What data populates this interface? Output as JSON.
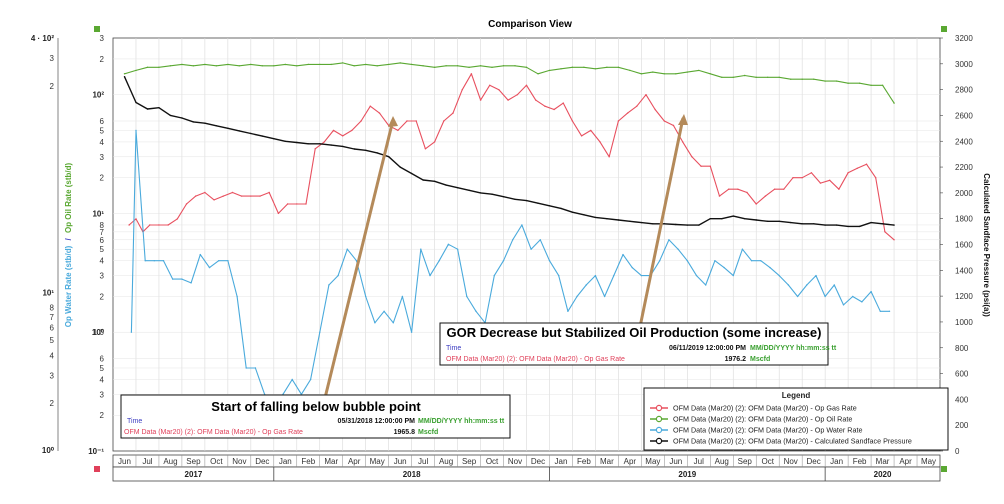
{
  "window": {
    "title": "Comparison View"
  },
  "chart_data": {
    "type": "line",
    "title": "Comparison View",
    "ylabel_left_water": "Op Water Rate (stb/d)",
    "ylabel_left_oil": "Op Oil Rate (stb/d)",
    "ylabel_left_sep": "/",
    "ylabel_right": "Calculated Sandface Pressure (psi(a))",
    "y_log_ticks": {
      "decade_labels": [
        "10²",
        "10¹",
        "10⁰",
        "10⁻¹"
      ],
      "minor_labels": [
        "3",
        "2",
        "6",
        "5",
        "4",
        "3",
        "2",
        "8",
        "7",
        "6",
        "5",
        "4",
        "3",
        "2",
        "1.0",
        "6",
        "5",
        "4",
        "3",
        "2"
      ]
    },
    "outer_axis_labels": [
      "4 · 10²",
      "3",
      "2",
      "10¹",
      "8",
      "7",
      "6",
      "5",
      "4",
      "3",
      "2",
      "10⁰"
    ],
    "y_right": {
      "min": 0,
      "max": 3200,
      "step": 200,
      "ticks": [
        "0",
        "200",
        "400",
        "600",
        "800",
        "1000",
        "1200",
        "1400",
        "1600",
        "1800",
        "2000",
        "2200",
        "2400",
        "2600",
        "2800",
        "3000",
        "3200"
      ]
    },
    "x_months": [
      "Jun",
      "Jul",
      "Aug",
      "Sep",
      "Oct",
      "Nov",
      "Dec",
      "Jan",
      "Feb",
      "Mar",
      "Apr",
      "May",
      "Jun",
      "Jul",
      "Aug",
      "Sep",
      "Oct",
      "Nov",
      "Dec",
      "Jan",
      "Feb",
      "Mar",
      "Apr",
      "May",
      "Jun",
      "Jul",
      "Aug",
      "Sep",
      "Oct",
      "Nov",
      "Dec",
      "Jan",
      "Feb",
      "Mar",
      "Apr",
      "May"
    ],
    "x_years": [
      "2017",
      "2018",
      "2019",
      "2020"
    ],
    "series": [
      {
        "name": "OFM Data (Mar20) (2): OFM Data (Mar20) - Op Gas Rate",
        "color": "#e8505f",
        "axis": "log",
        "x": [
          0.7,
          1.0,
          1.3,
          1.6,
          2.0,
          2.4,
          2.8,
          3.2,
          3.6,
          4.0,
          4.4,
          4.8,
          5.2,
          5.6,
          6.0,
          6.4,
          6.8,
          7.2,
          7.6,
          8.0,
          8.4,
          8.8,
          9.2,
          9.6,
          10.0,
          10.4,
          10.8,
          11.2,
          11.6,
          12.0,
          12.4,
          12.8,
          13.2,
          13.6,
          14.0,
          14.4,
          14.8,
          15.2,
          15.6,
          16.0,
          16.4,
          16.8,
          17.2,
          17.6,
          18.0,
          18.4,
          18.8,
          19.2,
          19.6,
          20.0,
          20.4,
          20.8,
          21.2,
          21.6,
          22.0,
          22.4,
          22.8,
          23.2,
          23.6,
          24.0,
          24.4,
          24.8,
          25.2,
          25.6,
          26.0,
          26.4,
          26.8,
          27.2,
          27.6,
          28.0,
          28.4,
          28.8,
          29.2,
          29.6,
          30.0,
          30.4,
          30.8,
          31.2,
          31.6,
          32.0,
          32.4,
          32.8,
          33.2,
          33.6,
          34.0
        ],
        "y": [
          8,
          9,
          7,
          8,
          8,
          8,
          9,
          12,
          14,
          15,
          13,
          14,
          15,
          14,
          14,
          14,
          15,
          10,
          12,
          12,
          12,
          35,
          40,
          50,
          45,
          50,
          60,
          80,
          70,
          55,
          50,
          60,
          60,
          35,
          40,
          60,
          70,
          110,
          150,
          90,
          120,
          110,
          90,
          100,
          120,
          90,
          80,
          75,
          85,
          60,
          45,
          50,
          40,
          30,
          60,
          70,
          80,
          100,
          75,
          60,
          55,
          40,
          30,
          25,
          25,
          14,
          16,
          16,
          15,
          12,
          14,
          16,
          16,
          20,
          20,
          22,
          18,
          19,
          16,
          22,
          24,
          26,
          20,
          7,
          6
        ]
      },
      {
        "name": "OFM Data (Mar20) (2): OFM Data (Mar20) - Op Oil Rate",
        "color": "#5aa832",
        "axis": "log",
        "x": [
          0.5,
          1.0,
          1.5,
          2.0,
          2.5,
          3.0,
          3.5,
          4.0,
          4.5,
          5.0,
          5.5,
          6.0,
          6.5,
          7.0,
          7.5,
          8.0,
          8.5,
          9.0,
          9.5,
          10.0,
          10.5,
          11.0,
          11.5,
          12.0,
          12.5,
          13.0,
          13.5,
          14.0,
          14.5,
          15.0,
          15.5,
          16.0,
          16.5,
          17.0,
          17.5,
          18.0,
          18.5,
          19.0,
          19.5,
          20.0,
          20.5,
          21.0,
          21.5,
          22.0,
          22.5,
          23.0,
          23.5,
          24.0,
          24.5,
          25.0,
          25.5,
          26.0,
          26.5,
          27.0,
          27.5,
          28.0,
          28.5,
          29.0,
          29.5,
          30.0,
          30.5,
          31.0,
          31.5,
          32.0,
          32.5,
          33.0,
          33.5,
          34.0
        ],
        "y": [
          150,
          160,
          170,
          170,
          175,
          180,
          175,
          180,
          175,
          180,
          175,
          180,
          175,
          175,
          180,
          175,
          180,
          180,
          180,
          185,
          175,
          180,
          175,
          180,
          185,
          180,
          175,
          170,
          175,
          175,
          170,
          175,
          170,
          175,
          175,
          170,
          150,
          160,
          165,
          170,
          170,
          165,
          170,
          170,
          160,
          150,
          155,
          150,
          150,
          155,
          160,
          150,
          140,
          140,
          145,
          140,
          140,
          140,
          135,
          135,
          135,
          130,
          130,
          125,
          125,
          120,
          120,
          85
        ]
      },
      {
        "name": "OFM Data (Mar20) (2): OFM Data (Mar20) - Op Water Rate",
        "color": "#4aaadc",
        "axis": "log",
        "x": [
          0.8,
          1.0,
          1.4,
          1.8,
          2.2,
          2.6,
          3.0,
          3.4,
          3.8,
          4.2,
          4.6,
          5.0,
          5.4,
          5.8,
          6.2,
          6.6,
          7.0,
          7.4,
          7.8,
          8.2,
          8.6,
          9.0,
          9.4,
          9.8,
          10.2,
          10.6,
          11.0,
          11.4,
          11.8,
          12.2,
          12.6,
          13.0,
          13.4,
          13.8,
          14.2,
          14.6,
          15.0,
          15.4,
          15.8,
          16.2,
          16.6,
          17.0,
          17.4,
          17.8,
          18.2,
          18.6,
          19.0,
          19.4,
          19.8,
          20.2,
          20.6,
          21.0,
          21.4,
          21.8,
          22.2,
          22.6,
          23.0,
          23.4,
          23.8,
          24.2,
          24.6,
          25.0,
          25.4,
          25.8,
          26.2,
          26.6,
          27.0,
          27.4,
          27.8,
          28.2,
          28.6,
          29.0,
          29.4,
          29.8,
          30.2,
          30.6,
          31.0,
          31.4,
          31.8,
          32.2,
          32.6,
          33.0,
          33.4,
          33.8
        ],
        "y": [
          1.0,
          50,
          4,
          4,
          4,
          2.8,
          2.8,
          2.6,
          4.5,
          3.5,
          4,
          4,
          2.0,
          0.5,
          0.5,
          0.3,
          0.15,
          0.3,
          0.4,
          0.3,
          0.4,
          1.0,
          2.5,
          3.0,
          5.0,
          4.0,
          2.0,
          1.2,
          1.5,
          1.2,
          2.0,
          1.0,
          5.0,
          3.0,
          4.0,
          5.5,
          5.0,
          2.0,
          1.5,
          1.2,
          3.0,
          4.0,
          6.0,
          8.0,
          5.0,
          6.0,
          4.0,
          3.0,
          1.5,
          2.0,
          2.5,
          3.0,
          2.0,
          3.0,
          4.5,
          3.5,
          3.0,
          3.0,
          4.0,
          6.0,
          5.0,
          4.0,
          3.0,
          2.5,
          4.0,
          3.5,
          3.0,
          5.0,
          4.0,
          4.0,
          3.5,
          3.0,
          2.5,
          2.0,
          2.5,
          3.0,
          2.0,
          2.5,
          1.7,
          2.0,
          1.8,
          2.2,
          1.5,
          1.5
        ]
      },
      {
        "name": "OFM Data (Mar20) (2): OFM Data (Mar20) - Calculated Sandface Pressure",
        "color": "#111111",
        "axis": "right",
        "x": [
          0.5,
          1.0,
          1.5,
          2.0,
          2.5,
          3.0,
          3.5,
          4.0,
          4.5,
          5.0,
          5.5,
          6.0,
          6.5,
          7.0,
          7.5,
          8.0,
          8.5,
          9.0,
          9.5,
          10.0,
          10.5,
          11.0,
          11.5,
          12.0,
          12.5,
          13.0,
          13.5,
          14.0,
          14.5,
          15.0,
          15.5,
          16.0,
          16.5,
          17.0,
          17.5,
          18.0,
          18.5,
          19.0,
          19.5,
          20.0,
          20.5,
          21.0,
          21.5,
          22.0,
          22.5,
          23.0,
          23.5,
          24.0,
          24.5,
          25.0,
          25.5,
          26.0,
          26.5,
          27.0,
          27.5,
          28.0,
          28.5,
          29.0,
          29.5,
          30.0,
          30.5,
          31.0,
          31.5,
          32.0,
          32.5,
          33.0,
          33.5,
          34.0
        ],
        "y": [
          2900,
          2700,
          2650,
          2660,
          2600,
          2580,
          2550,
          2540,
          2520,
          2500,
          2480,
          2460,
          2440,
          2420,
          2400,
          2390,
          2380,
          2380,
          2370,
          2360,
          2340,
          2330,
          2310,
          2280,
          2200,
          2150,
          2100,
          2090,
          2060,
          2040,
          2020,
          2000,
          1990,
          1970,
          1950,
          1940,
          1920,
          1900,
          1880,
          1850,
          1830,
          1810,
          1800,
          1790,
          1780,
          1770,
          1760,
          1760,
          1755,
          1750,
          1750,
          1800,
          1800,
          1820,
          1800,
          1790,
          1780,
          1780,
          1770,
          1760,
          1760,
          1750,
          1750,
          1740,
          1740,
          1770,
          1760,
          1750
        ]
      }
    ]
  },
  "annotations": [
    {
      "title": "Start of falling below bubble point",
      "rows": [
        {
          "label": "Time",
          "value": "05/31/2018 12:00:00 PM",
          "unit": "MM/DD/YYYY hh:mm:ss tt"
        },
        {
          "label": "OFM Data (Mar20) (2): OFM Data (Mar20) - Op Gas Rate",
          "value": "1965.8",
          "unit": "Mscfd"
        }
      ]
    },
    {
      "title": "GOR Decrease but Stabilized Oil Production (some increase)",
      "rows": [
        {
          "label": "Time",
          "value": "06/11/2019 12:00:00 PM",
          "unit": "MM/DD/YYYY hh:mm:ss tt"
        },
        {
          "label": "OFM Data (Mar20) (2): OFM Data (Mar20) - Op Gas Rate",
          "value": "1976.2",
          "unit": "Mscfd"
        }
      ]
    }
  ],
  "legend": {
    "title": "Legend",
    "items": [
      {
        "label": "OFM Data (Mar20) (2): OFM Data (Mar20) - Op Gas Rate",
        "color": "#e8505f"
      },
      {
        "label": "OFM Data (Mar20) (2): OFM Data (Mar20) - Op Oil Rate",
        "color": "#5aa832"
      },
      {
        "label": "OFM Data (Mar20) (2): OFM Data (Mar20) - Op Water Rate",
        "color": "#4aaadc"
      },
      {
        "label": "OFM Data (Mar20) (2): OFM Data (Mar20) - Calculated Sandface Pressure",
        "color": "#111111"
      }
    ]
  },
  "colors": {
    "arrow": "#b48a5a",
    "blue_text": "#3a3ac0",
    "green_text": "#3aa030",
    "red_text": "#e0405a"
  }
}
